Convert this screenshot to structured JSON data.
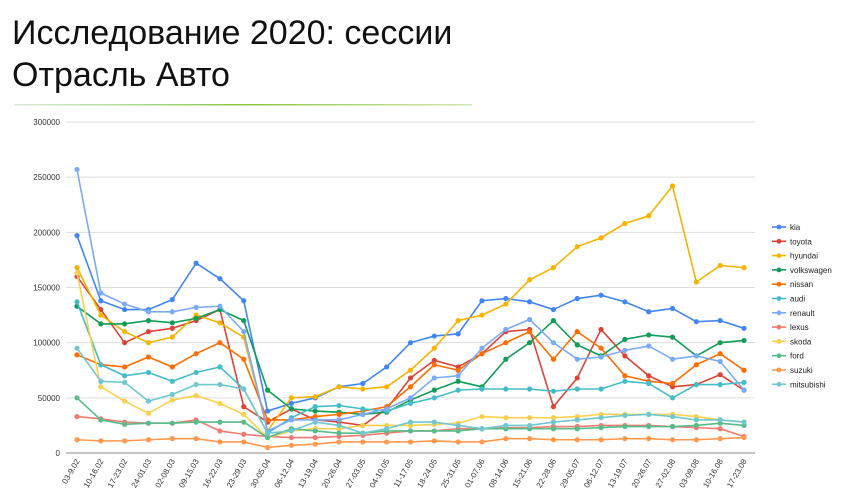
{
  "chart_data": {
    "type": "line",
    "title_lines": [
      "Исследование 2020: сессии",
      "Отрасль Авто"
    ],
    "categories": [
      "03-9.02",
      "10-16.02",
      "17-23.02",
      "24-01.03",
      "02-08.03",
      "09-15.03",
      "16-22.03",
      "23-29.03",
      "30-05.04",
      "06-12.04",
      "13-19.04",
      "20-26.04",
      "27-03.05",
      "04-10.05",
      "11-17.05",
      "18-24.05",
      "25-31.05",
      "01-07.06",
      "08-14.06",
      "15-21.06",
      "22-28.06",
      "29-05.07",
      "06-12.07",
      "13-19.07",
      "20-26.07",
      "27-02.08",
      "03-09.08",
      "10-16.08",
      "17-23.08"
    ],
    "ylim": [
      0,
      300000
    ],
    "yticks": [
      0,
      50000,
      100000,
      150000,
      200000,
      250000,
      300000
    ],
    "grid": true,
    "legend": "right",
    "series": [
      {
        "name": "kia",
        "color": "#4285f4",
        "values": [
          197000,
          138000,
          130000,
          130000,
          139000,
          172000,
          158000,
          138000,
          38000,
          45000,
          50000,
          60000,
          63000,
          78000,
          100000,
          106000,
          108000,
          138000,
          140000,
          137000,
          130000,
          140000,
          143000,
          137000,
          128000,
          131000,
          119000,
          120000,
          113000
        ]
      },
      {
        "name": "toyota",
        "color": "#db4437",
        "values": [
          160000,
          130000,
          100000,
          110000,
          113000,
          120000,
          130000,
          42000,
          28000,
          40000,
          30000,
          28000,
          25000,
          40000,
          68000,
          84000,
          78000,
          90000,
          110000,
          112000,
          42000,
          68000,
          112000,
          88000,
          70000,
          60000,
          62000,
          71000,
          57000
        ]
      },
      {
        "name": "hyundai",
        "color": "#f4b400",
        "values": [
          168000,
          125000,
          110000,
          100000,
          105000,
          125000,
          118000,
          105000,
          20000,
          50000,
          51000,
          60000,
          58000,
          60000,
          75000,
          95000,
          120000,
          125000,
          135000,
          157000,
          168000,
          187000,
          195000,
          208000,
          215000,
          242000,
          155000,
          170000,
          168000
        ]
      },
      {
        "name": "volkswagen",
        "color": "#0f9d58",
        "values": [
          133000,
          117000,
          117000,
          120000,
          118000,
          122000,
          130000,
          120000,
          57000,
          40000,
          38000,
          37000,
          35000,
          37000,
          48000,
          57000,
          65000,
          60000,
          85000,
          100000,
          120000,
          98000,
          88000,
          103000,
          107000,
          105000,
          88000,
          100000,
          102000
        ]
      },
      {
        "name": "nissan",
        "color": "#ff6d01",
        "values": [
          89000,
          80000,
          78000,
          87000,
          78000,
          90000,
          100000,
          85000,
          30000,
          30000,
          33000,
          35000,
          38000,
          42000,
          60000,
          80000,
          75000,
          90000,
          100000,
          110000,
          85000,
          110000,
          95000,
          70000,
          65000,
          63000,
          80000,
          90000,
          75000
        ]
      },
      {
        "name": "audi",
        "color": "#46bdc6",
        "values": [
          137000,
          80000,
          70000,
          73000,
          65000,
          73000,
          78000,
          58000,
          18000,
          32000,
          42000,
          43000,
          40000,
          38000,
          45000,
          50000,
          57000,
          58000,
          58000,
          58000,
          56000,
          58000,
          58000,
          65000,
          63000,
          50000,
          62000,
          62000,
          64000
        ]
      },
      {
        "name": "renault",
        "color": "#7baaf7",
        "values": [
          257000,
          145000,
          135000,
          128000,
          128000,
          132000,
          133000,
          110000,
          20000,
          30000,
          30000,
          30000,
          35000,
          40000,
          50000,
          68000,
          70000,
          95000,
          112000,
          121000,
          100000,
          85000,
          87000,
          93000,
          97000,
          85000,
          88000,
          83000,
          57000
        ]
      },
      {
        "name": "lexus",
        "color": "#f07b72",
        "values": [
          33000,
          31000,
          28000,
          27000,
          27000,
          30000,
          20000,
          17000,
          15000,
          14000,
          14000,
          15000,
          16000,
          18000,
          20000,
          20000,
          22000,
          22000,
          23000,
          23000,
          24000,
          24000,
          25000,
          25000,
          25000,
          24000,
          23000,
          22000,
          15000
        ]
      },
      {
        "name": "skoda",
        "color": "#fcd04f",
        "values": [
          163000,
          60000,
          47000,
          36000,
          48000,
          52000,
          45000,
          35000,
          14000,
          20000,
          22000,
          22000,
          25000,
          25000,
          25000,
          26000,
          27000,
          33000,
          32000,
          32000,
          32000,
          33000,
          35000,
          35000,
          35000,
          35000,
          33000,
          30000,
          28000
        ]
      },
      {
        "name": "ford",
        "color": "#57bb8a",
        "values": [
          50000,
          30000,
          26000,
          27000,
          27000,
          28000,
          28000,
          28000,
          14000,
          22000,
          20000,
          18000,
          18000,
          20000,
          20000,
          20000,
          20000,
          22000,
          22000,
          22000,
          22000,
          22000,
          23000,
          24000,
          24000,
          24000,
          25000,
          27000,
          25000
        ]
      },
      {
        "name": "suzuki",
        "color": "#ff994d",
        "values": [
          12000,
          11000,
          11000,
          12000,
          13000,
          13000,
          10000,
          10000,
          5000,
          7000,
          8000,
          10000,
          10000,
          10000,
          10000,
          11000,
          10000,
          10000,
          13000,
          13000,
          12000,
          12000,
          12000,
          13000,
          13000,
          12000,
          12000,
          13000,
          14000
        ]
      },
      {
        "name": "mitsubishi",
        "color": "#71c7ce",
        "values": [
          95000,
          65000,
          64000,
          47000,
          53000,
          62000,
          62000,
          58000,
          18000,
          20000,
          28000,
          25000,
          18000,
          22000,
          28000,
          28000,
          25000,
          22000,
          25000,
          25000,
          28000,
          30000,
          32000,
          34000,
          35000,
          33000,
          30000,
          30000,
          28000
        ]
      }
    ]
  }
}
